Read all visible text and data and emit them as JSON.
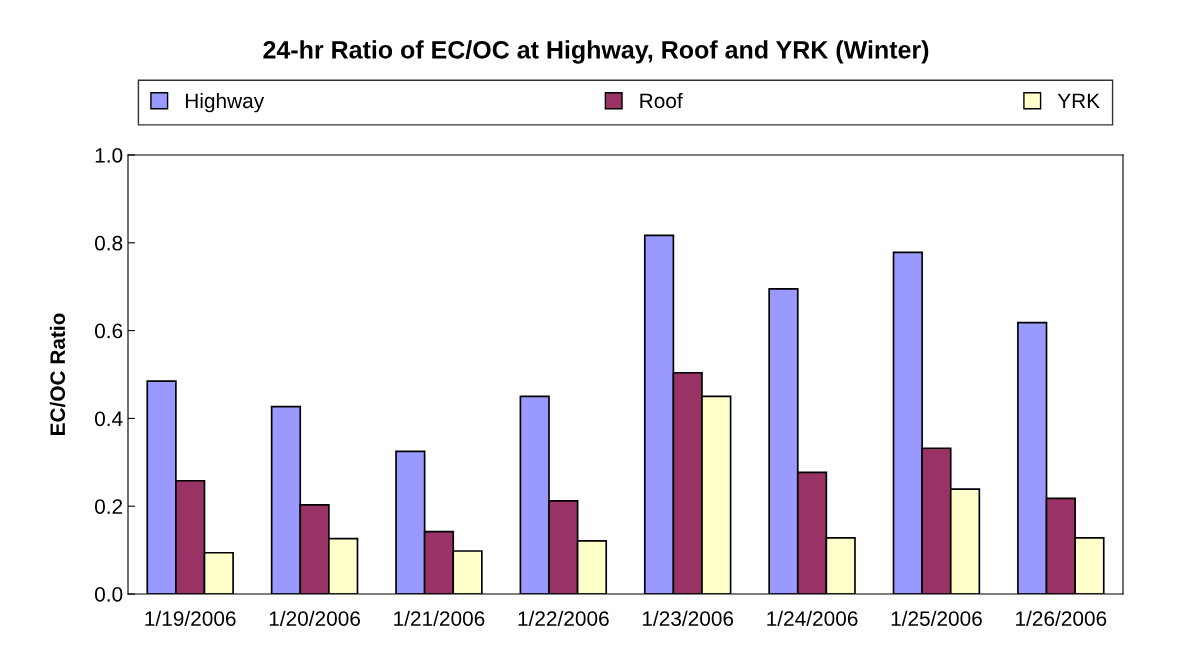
{
  "chart_data": {
    "type": "bar",
    "title": "24-hr Ratio of EC/OC at Highway, Roof and YRK (Winter)",
    "ylabel": "EC/OC Ratio",
    "categories": [
      "1/19/2006",
      "1/20/2006",
      "1/21/2006",
      "1/22/2006",
      "1/23/2006",
      "1/24/2006",
      "1/25/2006",
      "1/26/2006"
    ],
    "series": [
      {
        "name": "Highway",
        "color": "#9999ff",
        "values": [
          0.485,
          0.427,
          0.325,
          0.45,
          0.817,
          0.695,
          0.778,
          0.618
        ]
      },
      {
        "name": "Roof",
        "color": "#993366",
        "values": [
          0.258,
          0.203,
          0.142,
          0.212,
          0.504,
          0.277,
          0.332,
          0.218
        ]
      },
      {
        "name": "YRK",
        "color": "#ffffcc",
        "values": [
          0.094,
          0.126,
          0.098,
          0.121,
          0.45,
          0.128,
          0.239,
          0.128
        ]
      }
    ],
    "ylim": [
      0,
      1.0
    ],
    "yticks": [
      {
        "value": 0,
        "label": "0.0"
      },
      {
        "value": 0.2,
        "label": "0.2"
      },
      {
        "value": 0.4,
        "label": "0.4"
      },
      {
        "value": 0.6,
        "label": "0.6"
      },
      {
        "value": 0.8,
        "label": "0.8"
      },
      {
        "value": 1.0,
        "label": "1.0"
      }
    ],
    "grid": false,
    "legend": "top"
  }
}
